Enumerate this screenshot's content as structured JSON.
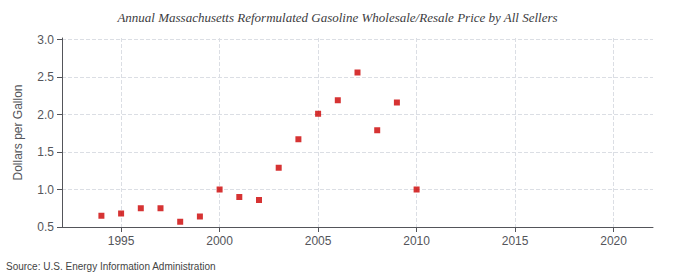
{
  "chart_data": {
    "type": "scatter",
    "title": "Annual Massachusetts Reformulated Gasoline Wholesale/Resale Price by All Sellers",
    "ylabel": "Dollars per Gallon",
    "annotation": "Source: U.S. Energy Information Administration",
    "x": [
      1994,
      1995,
      1996,
      1997,
      1998,
      1999,
      2000,
      2001,
      2002,
      2003,
      2004,
      2005,
      2006,
      2007,
      2008,
      2009,
      2010
    ],
    "values": [
      0.65,
      0.68,
      0.75,
      0.75,
      0.57,
      0.64,
      1.0,
      0.9,
      0.86,
      1.29,
      1.67,
      2.01,
      2.19,
      2.56,
      1.79,
      2.16,
      1.0
    ],
    "color": "#cc0000",
    "marker": "square",
    "xlim": [
      1992,
      2022
    ],
    "xticks": [
      1995,
      2000,
      2005,
      2010,
      2015,
      2020
    ],
    "ylim": [
      0.5,
      3.02
    ],
    "yticks": [
      0.5,
      {
        "value": 1,
        "label": "1.0"
      },
      1.5,
      {
        "value": 2,
        "label": "2.0"
      },
      2.5,
      {
        "value": 3,
        "label": "3.0"
      }
    ],
    "grid": true
  }
}
